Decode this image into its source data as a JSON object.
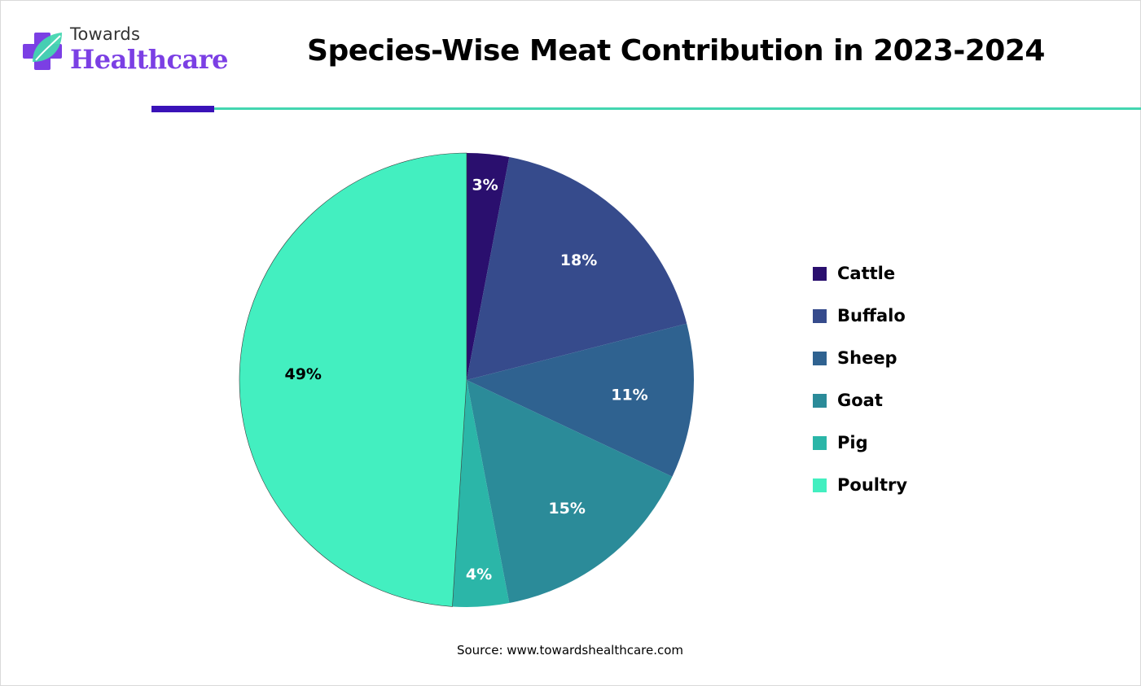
{
  "brand": {
    "name_top": "Towards",
    "name_bottom": "Healthcare",
    "colors": {
      "accent_purple": "#7b3fe4",
      "rule_purple": "#3a12b8",
      "rule_teal": "#43d6b0"
    }
  },
  "header": {
    "title": "Species-Wise Meat Contribution in 2023-2024"
  },
  "footer": {
    "source": "Source: www.towardshealthcare.com"
  },
  "chart_data": {
    "type": "pie",
    "title": "Species-Wise Meat Contribution in 2023-2024",
    "legend_position": "right",
    "start_angle_deg": 0,
    "direction": "clockwise",
    "categories": [
      "Cattle",
      "Buffalo",
      "Sheep",
      "Goat",
      "Pig",
      "Poultry"
    ],
    "values": [
      3,
      18,
      11,
      15,
      4,
      49
    ],
    "labels": [
      "3%",
      "18%",
      "11%",
      "15%",
      "4%",
      "49%"
    ],
    "colors": [
      "#2a0f6e",
      "#364b8c",
      "#2f6290",
      "#2b8b99",
      "#2bb6a8",
      "#43efc0"
    ],
    "label_colors": [
      "#ffffff",
      "#ffffff",
      "#ffffff",
      "#ffffff",
      "#ffffff",
      "#000000"
    ]
  }
}
